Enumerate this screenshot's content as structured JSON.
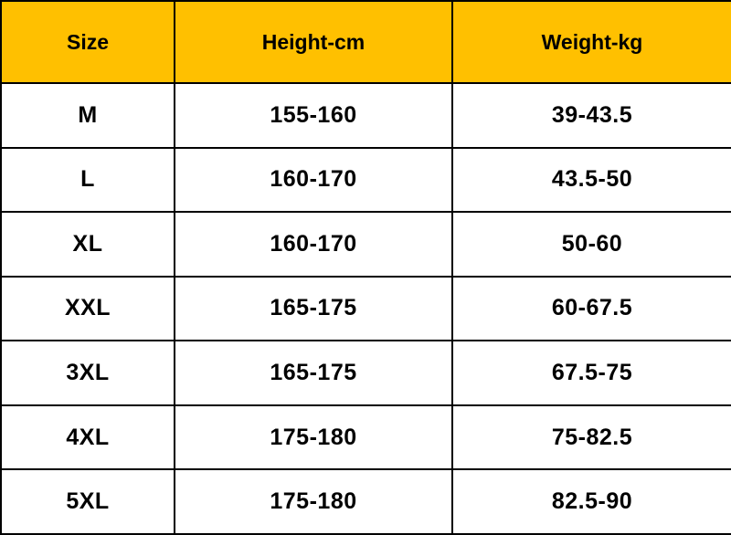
{
  "colors": {
    "header_bg": "#FFC000",
    "border": "#000000"
  },
  "headers": [
    "Size",
    "Height-cm",
    "Weight-kg"
  ],
  "rows": [
    [
      "M",
      "155-160",
      "39-43.5"
    ],
    [
      "L",
      "160-170",
      "43.5-50"
    ],
    [
      "XL",
      "160-170",
      "50-60"
    ],
    [
      "XXL",
      "165-175",
      "60-67.5"
    ],
    [
      "3XL",
      "165-175",
      "67.5-75"
    ],
    [
      "4XL",
      "175-180",
      "75-82.5"
    ],
    [
      "5XL",
      "175-180",
      "82.5-90"
    ]
  ]
}
